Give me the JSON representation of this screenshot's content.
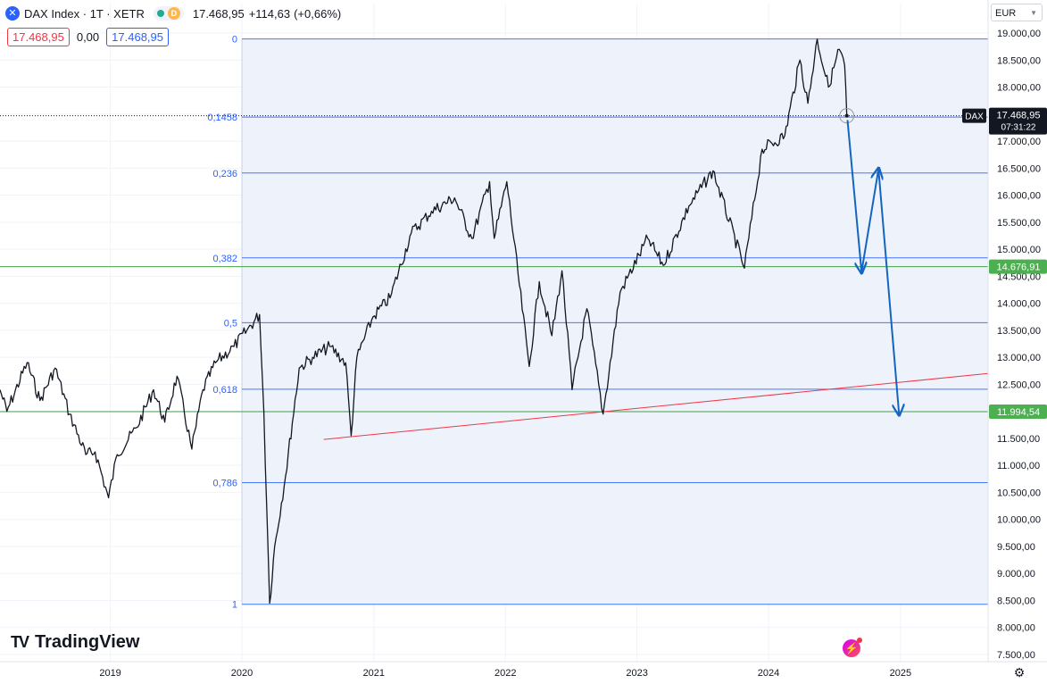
{
  "header": {
    "symbol_icon": "x-circle-icon",
    "title": "DAX Index · 1T · XETR",
    "market_status_icon": "market-open-dot-icon",
    "delay_badge": "D",
    "last_price": "17.468,95",
    "change": "+114,63",
    "change_pct": "(+0,66%)",
    "sell_price": "17.468,95",
    "spread": "0,00",
    "buy_price": "17.468,95"
  },
  "toolbar": {
    "currency": "EUR",
    "settings_icon": "settings-gear-icon"
  },
  "branding": {
    "logo_mark": "TV",
    "logo_text": "TradingView"
  },
  "colors": {
    "price_line": "#131722",
    "fib_line": "#2962ff",
    "support_line": "#43a047",
    "trendline": "#f23645",
    "arrow": "#1565c0",
    "fib_zone": "#eef2fb",
    "green_label": "#4caf50"
  },
  "chart_data": {
    "type": "line",
    "title": "DAX Index · 1T · XETR",
    "ylabel": "",
    "xlabel": "",
    "ylim": [
      7500,
      19250
    ],
    "x_range": [
      "2018-03-01",
      "2025-09-01"
    ],
    "x_ticks": [
      "2019",
      "2020",
      "2021",
      "2022",
      "2023",
      "2024",
      "2025"
    ],
    "y_ticks": [
      "19.000,00",
      "18.500,00",
      "18.000,00",
      "17.500,00",
      "17.000,00",
      "16.500,00",
      "16.000,00",
      "15.500,00",
      "15.000,00",
      "14.500,00",
      "14.000,00",
      "13.500,00",
      "13.000,00",
      "12.500,00",
      "12.000,00",
      "11.500,00",
      "11.000,00",
      "10.500,00",
      "10.000,00",
      "9.500,00",
      "9.000,00",
      "8.500,00",
      "8.000,00",
      "7.500,00"
    ],
    "grid": true,
    "series": [
      {
        "name": "DAX",
        "points": [
          [
            "2018-03-01",
            12400
          ],
          [
            "2018-03-20",
            12000
          ],
          [
            "2018-05-15",
            12900
          ],
          [
            "2018-06-20",
            12200
          ],
          [
            "2018-08-01",
            12800
          ],
          [
            "2018-09-10",
            11950
          ],
          [
            "2018-10-25",
            11200
          ],
          [
            "2018-11-20",
            11250
          ],
          [
            "2018-12-27",
            10400
          ],
          [
            "2019-01-20",
            11200
          ],
          [
            "2019-03-15",
            11700
          ],
          [
            "2019-05-01",
            12400
          ],
          [
            "2019-06-01",
            11800
          ],
          [
            "2019-07-05",
            12650
          ],
          [
            "2019-08-15",
            11300
          ],
          [
            "2019-09-15",
            12400
          ],
          [
            "2019-10-20",
            12900
          ],
          [
            "2019-12-10",
            13200
          ],
          [
            "2020-01-15",
            13500
          ],
          [
            "2020-02-19",
            13790
          ],
          [
            "2020-03-02",
            12000
          ],
          [
            "2020-03-18",
            8450
          ],
          [
            "2020-04-01",
            9500
          ],
          [
            "2020-05-01",
            10800
          ],
          [
            "2020-06-08",
            12800
          ],
          [
            "2020-07-15",
            13000
          ],
          [
            "2020-09-01",
            13200
          ],
          [
            "2020-10-15",
            12900
          ],
          [
            "2020-10-30",
            11550
          ],
          [
            "2020-11-15",
            13000
          ],
          [
            "2020-12-30",
            13750
          ],
          [
            "2021-02-15",
            14100
          ],
          [
            "2021-04-15",
            15300
          ],
          [
            "2021-06-10",
            15700
          ],
          [
            "2021-08-13",
            15950
          ],
          [
            "2021-09-30",
            15200
          ],
          [
            "2021-11-18",
            16250
          ],
          [
            "2021-12-01",
            15200
          ],
          [
            "2022-01-05",
            16250
          ],
          [
            "2022-03-08",
            12830
          ],
          [
            "2022-04-05",
            14400
          ],
          [
            "2022-05-10",
            13400
          ],
          [
            "2022-06-07",
            14600
          ],
          [
            "2022-07-05",
            12400
          ],
          [
            "2022-08-15",
            13900
          ],
          [
            "2022-09-29",
            11950
          ],
          [
            "2022-11-15",
            14200
          ],
          [
            "2023-01-31",
            15200
          ],
          [
            "2023-03-15",
            14700
          ],
          [
            "2023-05-25",
            15800
          ],
          [
            "2023-07-31",
            16450
          ],
          [
            "2023-10-26",
            14650
          ],
          [
            "2023-12-14",
            16850
          ],
          [
            "2024-02-15",
            17100
          ],
          [
            "2024-03-28",
            18500
          ],
          [
            "2024-04-19",
            17700
          ],
          [
            "2024-05-15",
            18890
          ],
          [
            "2024-06-15",
            18000
          ],
          [
            "2024-07-15",
            18700
          ],
          [
            "2024-07-30",
            18400
          ],
          [
            "2024-08-05",
            17468.95
          ]
        ]
      }
    ],
    "fibonacci": {
      "levels": [
        {
          "label": "0",
          "value": 18890
        },
        {
          "label": "0,1458",
          "value": 17445
        },
        {
          "label": "0,236",
          "value": 16410
        },
        {
          "label": "0,382",
          "value": 14840
        },
        {
          "label": "0,5",
          "value": 13640
        },
        {
          "label": "0,618",
          "value": 12410
        },
        {
          "label": "0,786",
          "value": 10680
        },
        {
          "label": "1",
          "value": 8430
        }
      ],
      "start": "2020-01-01"
    },
    "support_levels": [
      {
        "value": 14676.91,
        "label": "14.676,91"
      },
      {
        "value": 11994.54,
        "label": "11.994,54"
      }
    ],
    "trendline": {
      "from": [
        "2020-08-15",
        11480
      ],
      "to": [
        "2025-09-01",
        12700
      ]
    },
    "projection_arrows": [
      {
        "from": [
          "2024-08-07",
          17390
        ],
        "to": [
          "2024-09-15",
          14580
        ]
      },
      {
        "from": [
          "2024-09-15",
          14580
        ],
        "to": [
          "2024-11-01",
          16480
        ]
      },
      {
        "from": [
          "2024-11-01",
          16480
        ],
        "to": [
          "2024-12-28",
          11950
        ]
      }
    ],
    "current_price_marker": {
      "symbol": "DAX",
      "value": 17468.95,
      "label": "17.468,95",
      "countdown": "07:31:22"
    }
  }
}
